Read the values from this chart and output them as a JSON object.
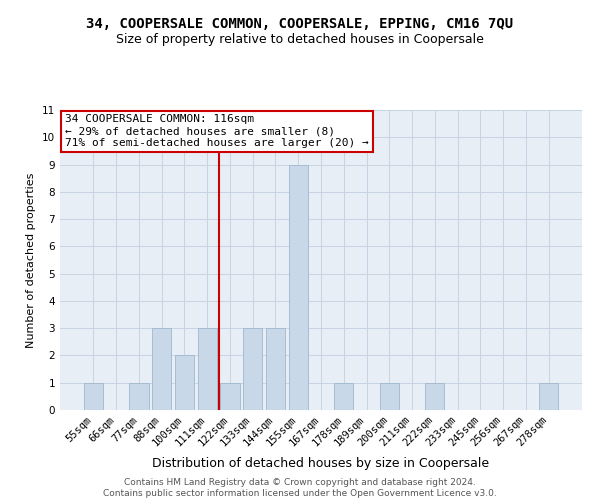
{
  "title": "34, COOPERSALE COMMON, COOPERSALE, EPPING, CM16 7QU",
  "subtitle": "Size of property relative to detached houses in Coopersale",
  "xlabel": "Distribution of detached houses by size in Coopersale",
  "ylabel": "Number of detached properties",
  "categories": [
    "55sqm",
    "66sqm",
    "77sqm",
    "88sqm",
    "100sqm",
    "111sqm",
    "122sqm",
    "133sqm",
    "144sqm",
    "155sqm",
    "167sqm",
    "178sqm",
    "189sqm",
    "200sqm",
    "211sqm",
    "222sqm",
    "233sqm",
    "245sqm",
    "256sqm",
    "267sqm",
    "278sqm"
  ],
  "values": [
    1,
    0,
    1,
    3,
    2,
    3,
    1,
    3,
    3,
    9,
    0,
    1,
    0,
    1,
    0,
    1,
    0,
    0,
    0,
    0,
    1
  ],
  "bar_color": "#c8d8e8",
  "bar_edgecolor": "#a0b8cc",
  "property_line_color": "#cc0000",
  "property_line_index": 5.5,
  "annotation_text": "34 COOPERSALE COMMON: 116sqm\n← 29% of detached houses are smaller (8)\n71% of semi-detached houses are larger (20) →",
  "annotation_box_edgecolor": "#cc0000",
  "ylim": [
    0,
    11
  ],
  "yticks": [
    0,
    1,
    2,
    3,
    4,
    5,
    6,
    7,
    8,
    9,
    10,
    11
  ],
  "grid_color": "#c8d4e4",
  "background_color": "#e8eef6",
  "footer_text": "Contains HM Land Registry data © Crown copyright and database right 2024.\nContains public sector information licensed under the Open Government Licence v3.0.",
  "title_fontsize": 10,
  "subtitle_fontsize": 9,
  "ylabel_fontsize": 8,
  "xlabel_fontsize": 9,
  "tick_fontsize": 7.5,
  "annotation_fontsize": 8,
  "footer_fontsize": 6.5
}
